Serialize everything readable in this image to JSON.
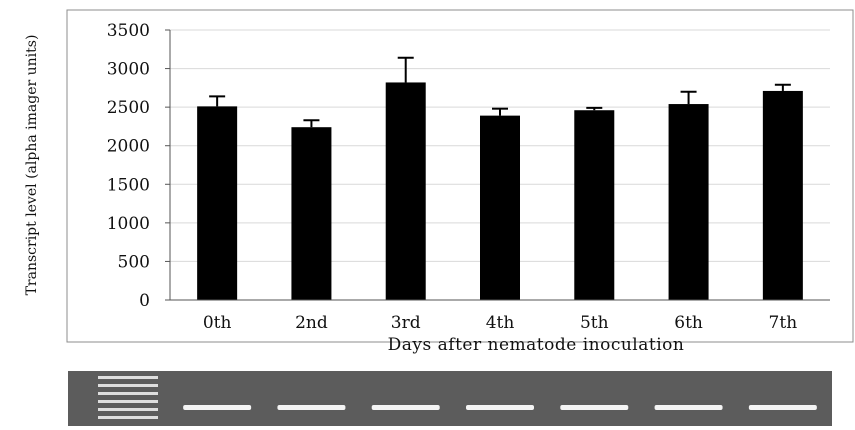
{
  "chart_data": {
    "type": "bar",
    "title": "",
    "xlabel": "Days after nematode inoculation",
    "ylabel": "Transcript level (alpha imager units)",
    "categories": [
      "0th",
      "2nd",
      "3rd",
      "4th",
      "5th",
      "6th",
      "7th"
    ],
    "values": [
      2510,
      2240,
      2820,
      2390,
      2460,
      2540,
      2710
    ],
    "error": [
      130,
      90,
      320,
      90,
      30,
      160,
      80
    ],
    "ylim": [
      0,
      3500
    ],
    "yticks": [
      "0",
      "500",
      "1000",
      "1500",
      "2000",
      "2500",
      "3000",
      "3500"
    ],
    "grid": true,
    "legend": "none",
    "bar_color": "#000000",
    "grid_color": "#d9d9d9"
  },
  "gel": {
    "lane_count": 7,
    "ladder_bands": 6,
    "background_color": "#5c5c5c",
    "band_color": "#f4f4f4"
  }
}
